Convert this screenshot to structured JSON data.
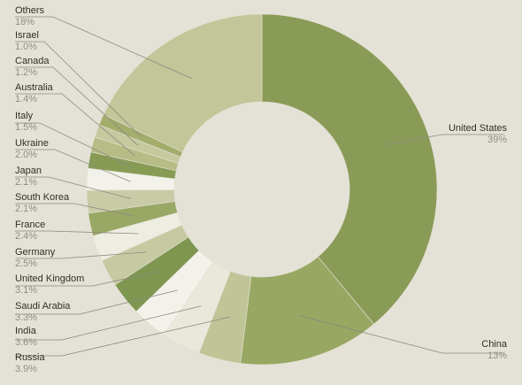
{
  "chart_data": {
    "type": "donut",
    "title": "",
    "slices": [
      {
        "label": "United States",
        "pct_label": "39%",
        "value": 39,
        "color": "#8a9b57"
      },
      {
        "label": "China",
        "pct_label": "13%",
        "value": 13,
        "color": "#98a762"
      },
      {
        "label": "Russia",
        "pct_label": "3.9%",
        "value": 3.9,
        "color": "#c0c598"
      },
      {
        "label": "India",
        "pct_label": "3.6%",
        "value": 3.6,
        "color": "#e9e8db"
      },
      {
        "label": "Saudi Arabia",
        "pct_label": "3.3%",
        "value": 3.3,
        "color": "#f3f2ea"
      },
      {
        "label": "United Kingdom",
        "pct_label": "3.1%",
        "value": 3.1,
        "color": "#7f9650"
      },
      {
        "label": "Germany",
        "pct_label": "2.5%",
        "value": 2.5,
        "color": "#c7c9a2"
      },
      {
        "label": "France",
        "pct_label": "2.4%",
        "value": 2.4,
        "color": "#eeede2"
      },
      {
        "label": "South Korea",
        "pct_label": "2.1%",
        "value": 2.1,
        "color": "#9aa865"
      },
      {
        "label": "Japan",
        "pct_label": "2.1%",
        "value": 2.1,
        "color": "#c8cba6"
      },
      {
        "label": "Ukraine",
        "pct_label": "2.0%",
        "value": 2.0,
        "color": "#f3f2ea"
      },
      {
        "label": "Italy",
        "pct_label": "1.5%",
        "value": 1.5,
        "color": "#879b55"
      },
      {
        "label": "Australia",
        "pct_label": "1.4%",
        "value": 1.4,
        "color": "#b7bc86"
      },
      {
        "label": "Canada",
        "pct_label": "1.2%",
        "value": 1.2,
        "color": "#c6c99e"
      },
      {
        "label": "Israel",
        "pct_label": "1.0%",
        "value": 1.0,
        "color": "#a3ad6c"
      },
      {
        "label": "Others",
        "pct_label": "18%",
        "value": 18,
        "color": "#c2c698"
      }
    ],
    "legend": "none"
  }
}
